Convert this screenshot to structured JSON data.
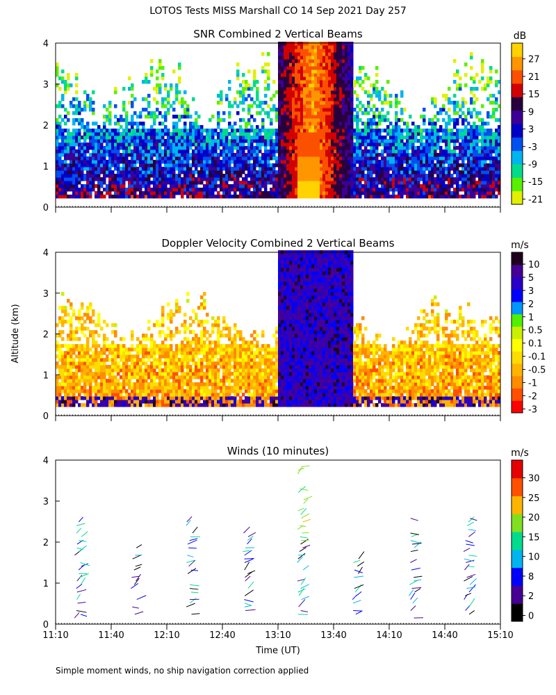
{
  "figure_title": "LOTOS Tests MISS Marshall CO  14 Sep 2021 Day 257",
  "footnote": "Simple moment winds, no ship navigation correction applied",
  "shared_axes": {
    "ylabel": "Altitude (km)",
    "xlabel": "Time (UT)",
    "x_ticks": [
      "11:10",
      "11:40",
      "12:10",
      "12:40",
      "13:10",
      "13:40",
      "14:10",
      "14:40",
      "15:10"
    ],
    "x_range": [
      "11:10",
      "15:10"
    ],
    "y_ticks": [
      0,
      1,
      2,
      3,
      4
    ],
    "y_range": [
      0,
      4
    ]
  },
  "chart_data": [
    {
      "type": "heatmap",
      "title": "SNR Combined 2 Vertical Beams",
      "colorbar_unit": "dB",
      "colorbar_ticks": [
        27,
        21,
        15,
        9,
        3,
        -3,
        -9,
        -15,
        -21
      ],
      "colorbar_range": [
        -24,
        33
      ],
      "colorbar_colors": [
        "#e0f000",
        "#58f000",
        "#00dc8c",
        "#00b4f0",
        "#0050f0",
        "#0000c8",
        "#3c0096",
        "#28003c",
        "#d20000",
        "#fa5000",
        "#ff9600",
        "#ffd200"
      ],
      "xlim": [
        "11:10",
        "15:10"
      ],
      "ylim": [
        0,
        4
      ]
    },
    {
      "type": "heatmap",
      "title": "Doppler Velocity Combined 2 Vertical Beams",
      "colorbar_unit": "m/s",
      "colorbar_ticks": [
        10.0,
        5.0,
        3.0,
        2.0,
        1.0,
        0.5,
        0.1,
        -0.1,
        -0.5,
        -1.0,
        -2.0,
        -3.0
      ],
      "colorbar_range": [
        -3.0,
        10.0
      ],
      "colorbar_colors": [
        "#ff0000",
        "#ff5000",
        "#ff8c00",
        "#ffb400",
        "#ffdc00",
        "#ffff00",
        "#c8f000",
        "#50f000",
        "#0096ff",
        "#0000ff",
        "#2800c8",
        "#460096",
        "#1e001e"
      ],
      "xlim": [
        "11:10",
        "15:10"
      ],
      "ylim": [
        0,
        4
      ]
    },
    {
      "type": "scatter",
      "title": "Winds (10 minutes)",
      "colorbar_unit": "m/s",
      "colorbar_ticks": [
        30,
        25,
        20,
        15,
        10,
        8,
        2,
        0
      ],
      "colorbar_range": [
        0,
        34
      ],
      "colorbar_colors": [
        "#000000",
        "#460096",
        "#0000ff",
        "#00b4f0",
        "#00dc8c",
        "#80e020",
        "#ffb400",
        "#ff5000",
        "#e60000"
      ],
      "xlim": [
        "11:10",
        "15:10"
      ],
      "ylim": [
        0,
        4
      ]
    }
  ]
}
